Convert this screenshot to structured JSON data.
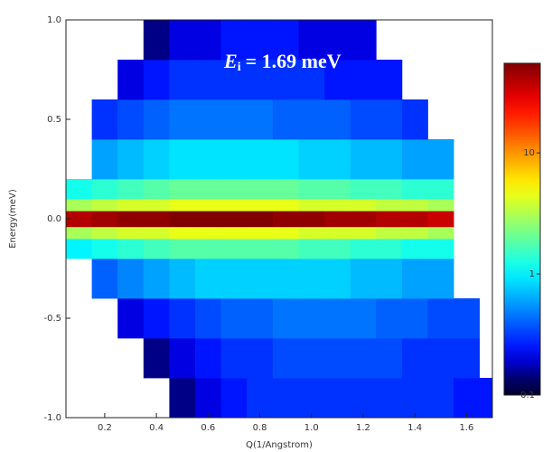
{
  "chart_data": {
    "type": "heatmap",
    "annotation": {
      "symbol": "E",
      "subscript": "i",
      "text": "= 1.69 meV"
    },
    "x_label": "Q(1/Angstrom)",
    "y_label": "Energy(meV)",
    "xlim": [
      0.05,
      1.7
    ],
    "ylim": [
      -1,
      1
    ],
    "xticks": [
      0.2,
      0.4,
      0.6,
      0.8,
      {
        "value": 1,
        "label": "1.0"
      },
      1.2,
      1.4,
      1.6
    ],
    "yticks": [
      {
        "value": -1,
        "label": "-1.0"
      },
      -0.5,
      {
        "value": 0,
        "label": "0.0"
      },
      0.5,
      {
        "value": 1,
        "label": "1.0"
      }
    ],
    "x_edges": [
      0.05,
      0.15,
      0.25,
      0.35,
      0.45,
      0.55,
      0.65,
      0.75,
      0.85,
      0.95,
      1.05,
      1.15,
      1.25,
      1.35,
      1.45,
      1.55,
      1.65,
      1.7
    ],
    "y_edges": [
      -1,
      -0.8,
      -0.6,
      -0.4,
      -0.2,
      -0.1,
      -0.04,
      0.04,
      0.1,
      0.2,
      0.4,
      0.6,
      0.8,
      1
    ],
    "z": [
      [
        null,
        null,
        null,
        null,
        0.15,
        0.2,
        0.25,
        0.3,
        0.3,
        0.3,
        0.3,
        0.3,
        0.3,
        0.3,
        0.3,
        0.25,
        0.25
      ],
      [
        null,
        null,
        null,
        0.15,
        0.2,
        0.25,
        0.3,
        0.3,
        0.35,
        0.35,
        0.35,
        0.35,
        0.35,
        0.3,
        0.3,
        0.3,
        null
      ],
      [
        null,
        null,
        0.2,
        0.25,
        0.3,
        0.35,
        0.4,
        0.4,
        0.45,
        0.45,
        0.45,
        0.45,
        0.4,
        0.4,
        0.35,
        0.35,
        null
      ],
      [
        null,
        0.4,
        0.5,
        0.6,
        0.7,
        0.8,
        0.8,
        0.8,
        0.8,
        0.8,
        0.8,
        0.7,
        0.7,
        0.6,
        0.6,
        null,
        null
      ],
      [
        1,
        1.2,
        1.4,
        1.6,
        1.8,
        1.8,
        1.8,
        1.8,
        1.8,
        1.6,
        1.6,
        1.4,
        1.4,
        1.2,
        1.2,
        null,
        null
      ],
      [
        3,
        3.5,
        4,
        4,
        4.5,
        4.5,
        4.5,
        4.5,
        4.5,
        4,
        4,
        4,
        3.5,
        3.5,
        3,
        null,
        null
      ],
      [
        40,
        45,
        50,
        50,
        55,
        55,
        55,
        55,
        50,
        50,
        45,
        45,
        40,
        40,
        35,
        null,
        null
      ],
      [
        3,
        3.5,
        4,
        4,
        4.5,
        4.5,
        4.5,
        4.5,
        4.5,
        4,
        4,
        4,
        3.5,
        3.5,
        3,
        null,
        null
      ],
      [
        1.2,
        1.4,
        1.6,
        1.8,
        2,
        2,
        2,
        2,
        2,
        1.8,
        1.8,
        1.6,
        1.6,
        1.4,
        1.4,
        null,
        null
      ],
      [
        null,
        0.6,
        0.7,
        0.8,
        0.9,
        0.9,
        0.9,
        0.9,
        0.9,
        0.8,
        0.8,
        0.7,
        0.7,
        0.6,
        0.6,
        null,
        null
      ],
      [
        null,
        0.3,
        0.35,
        0.4,
        0.45,
        0.45,
        0.45,
        0.45,
        0.4,
        0.4,
        0.4,
        0.35,
        0.35,
        0.3,
        null,
        null,
        null
      ],
      [
        null,
        null,
        0.2,
        0.25,
        0.3,
        0.3,
        0.3,
        0.3,
        0.3,
        0.3,
        0.25,
        0.25,
        0.25,
        null,
        null,
        null,
        null
      ],
      [
        null,
        null,
        null,
        0.15,
        0.2,
        0.2,
        0.25,
        0.25,
        0.25,
        0.2,
        0.2,
        0.2,
        null,
        null,
        null,
        null,
        null
      ]
    ],
    "colormap": "jet",
    "color_scale": "log",
    "clim": [
      0.1,
      55
    ],
    "cticks": [
      0.1,
      1,
      10
    ]
  }
}
